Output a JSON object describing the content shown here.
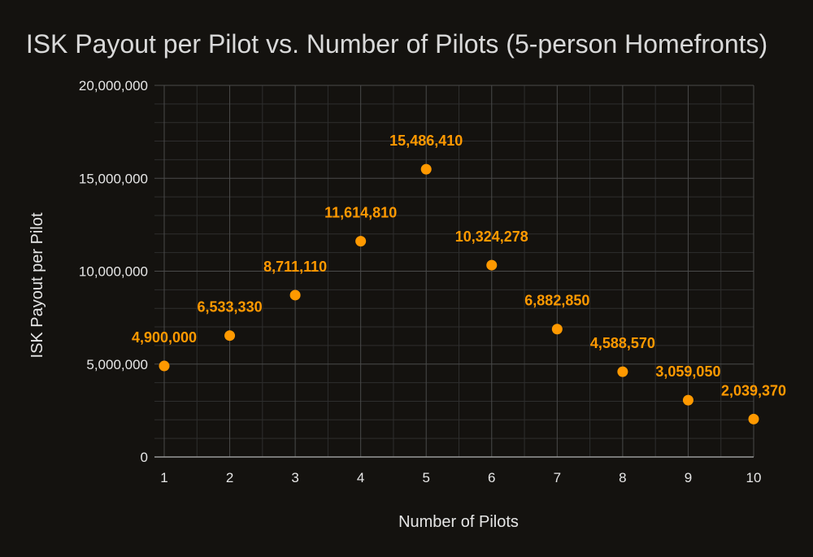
{
  "chart_data": {
    "type": "scatter",
    "title": "ISK Payout per Pilot vs. Number of Pilots (5-person Homefronts)",
    "xlabel": "Number of Pilots",
    "ylabel": "ISK Payout per Pilot",
    "x": [
      1,
      2,
      3,
      4,
      5,
      6,
      7,
      8,
      9,
      10
    ],
    "y": [
      4900000,
      6533330,
      8711110,
      11614810,
      15486410,
      10324278,
      6882850,
      4588570,
      3059050,
      2039370
    ],
    "data_labels": [
      "4,900,000",
      "6,533,330",
      "8,711,110",
      "11,614,810",
      "15,486,410",
      "10,324,278",
      "6,882,850",
      "4,588,570",
      "3,059,050",
      "2,039,370"
    ],
    "xlim": [
      1,
      10
    ],
    "ylim": [
      0,
      20000000
    ],
    "x_ticks": [
      1,
      2,
      3,
      4,
      5,
      6,
      7,
      8,
      9,
      10
    ],
    "x_tick_labels": [
      "1",
      "2",
      "3",
      "4",
      "5",
      "6",
      "7",
      "8",
      "9",
      "10"
    ],
    "y_ticks": [
      0,
      5000000,
      10000000,
      15000000,
      20000000
    ],
    "y_tick_labels": [
      "0",
      "5,000,000",
      "10,000,000",
      "15,000,000",
      "20,000,000"
    ],
    "grid": true,
    "legend": "none",
    "colors": {
      "background": "#14120f",
      "marker": "#ff9900",
      "data_label": "#ff9900",
      "grid": "#4a4a4a",
      "minor_grid": "#2e2e2e",
      "axis": "#9a9a9a",
      "text": "#e6e6e6",
      "title": "#d9d9d9"
    }
  }
}
